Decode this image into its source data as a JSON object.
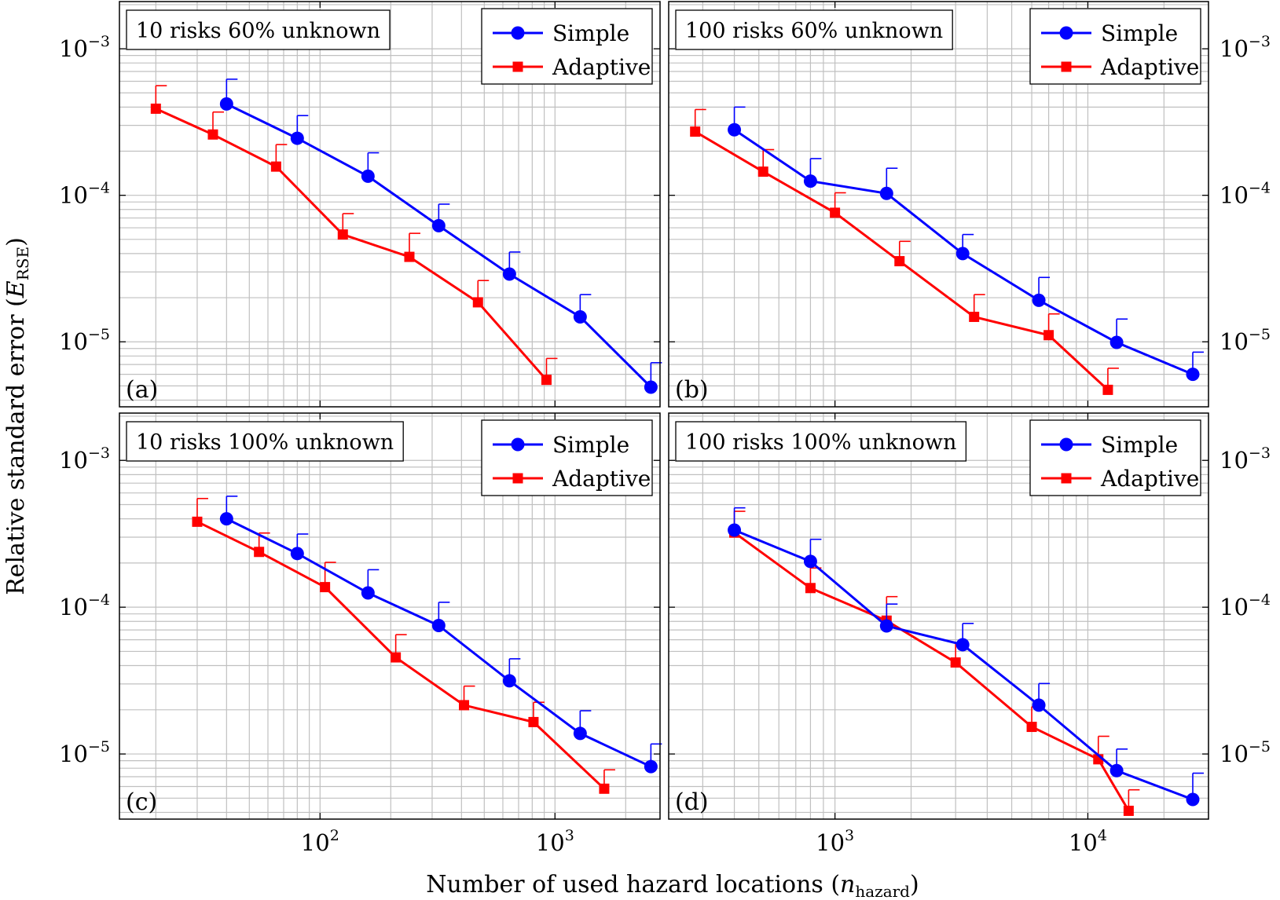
{
  "figure": {
    "ylabel_main": "Relative standard error (",
    "ylabel_var": "E",
    "ylabel_sub": "RSE",
    "ylabel_close": ")",
    "xlabel_main": "Number of used hazard locations (",
    "xlabel_var": "n",
    "xlabel_sub": "hazard",
    "xlabel_close": ")"
  },
  "colors": {
    "simple": "#0000ff",
    "adaptive": "#ff0000",
    "grid": "#c0c0c0"
  },
  "chart_data": [
    {
      "type": "line",
      "panel": "a",
      "panel_label": "(a)",
      "title": "10 risks 60% unknown",
      "xscale": "log",
      "yscale": "log",
      "xlim": [
        14,
        2800
      ],
      "ylim": [
        3.6e-06,
        0.0021
      ],
      "y_ticks": [
        "10^-3",
        "10^-4",
        "10^-5"
      ],
      "x_ticks": [
        "10^2",
        "10^3"
      ],
      "grid": true,
      "legend": [
        "Simple",
        "Adaptive"
      ],
      "legend_position": "top-right",
      "series": [
        {
          "name": "Simple",
          "marker": "circle",
          "x": [
            40,
            80,
            160,
            320,
            640,
            1280,
            2560
          ],
          "y": [
            0.00042,
            0.000245,
            0.000135,
            6.2e-05,
            2.9e-05,
            1.48e-05,
            4.9e-06
          ],
          "err_upper": [
            0.00062,
            0.00035,
            0.000195,
            8.7e-05,
            4.1e-05,
            2.1e-05,
            7.2e-06
          ]
        },
        {
          "name": "Adaptive",
          "marker": "square",
          "x": [
            20,
            35,
            65,
            125,
            240,
            470,
            920
          ],
          "y": [
            0.00039,
            0.00026,
            0.000157,
            5.4e-05,
            3.8e-05,
            1.86e-05,
            5.5e-06
          ],
          "err_upper": [
            0.00056,
            0.00037,
            0.000222,
            7.5e-05,
            5.5e-05,
            2.62e-05,
            7.7e-06
          ]
        }
      ]
    },
    {
      "type": "line",
      "panel": "b",
      "panel_label": "(b)",
      "title": "100 risks 60% unknown",
      "xscale": "log",
      "yscale": "log",
      "xlim": [
        220,
        30000
      ],
      "ylim": [
        3.6e-06,
        0.0021
      ],
      "y_ticks": [
        "10^-3",
        "10^-4",
        "10^-5"
      ],
      "x_ticks": [
        "10^3",
        "10^4"
      ],
      "grid": true,
      "legend": [
        "Simple",
        "Adaptive"
      ],
      "legend_position": "top-right",
      "series": [
        {
          "name": "Simple",
          "marker": "circle",
          "x": [
            400,
            800,
            1600,
            3200,
            6400,
            13000,
            26000
          ],
          "y": [
            0.00028,
            0.000125,
            0.000103,
            4e-05,
            1.92e-05,
            9.9e-06,
            6e-06
          ],
          "err_upper": [
            0.0004,
            0.000178,
            0.000153,
            5.4e-05,
            2.75e-05,
            1.43e-05,
            8.5e-06
          ]
        },
        {
          "name": "Adaptive",
          "marker": "square",
          "x": [
            280,
            520,
            1000,
            1800,
            3550,
            7000,
            12000
          ],
          "y": [
            0.000272,
            0.000145,
            7.6e-05,
            3.55e-05,
            1.48e-05,
            1.11e-05,
            4.7e-06
          ],
          "err_upper": [
            0.000385,
            0.000205,
            0.000104,
            4.85e-05,
            2.1e-05,
            1.55e-05,
            6.6e-06
          ]
        }
      ]
    },
    {
      "type": "line",
      "panel": "c",
      "panel_label": "(c)",
      "title": "10 risks 100% unknown",
      "xscale": "log",
      "yscale": "log",
      "xlim": [
        14,
        2800
      ],
      "ylim": [
        3.6e-06,
        0.0021
      ],
      "y_ticks": [
        "10^-3",
        "10^-4",
        "10^-5"
      ],
      "x_ticks": [
        "10^2",
        "10^3"
      ],
      "grid": true,
      "legend": [
        "Simple",
        "Adaptive"
      ],
      "legend_position": "top-right",
      "series": [
        {
          "name": "Simple",
          "marker": "circle",
          "x": [
            40,
            80,
            160,
            320,
            640,
            1280,
            2560
          ],
          "y": [
            0.0004,
            0.000232,
            0.000125,
            7.5e-05,
            3.15e-05,
            1.38e-05,
            8.2e-06
          ],
          "err_upper": [
            0.00057,
            0.000315,
            0.00018,
            0.000108,
            4.45e-05,
            1.97e-05,
            1.17e-05
          ]
        },
        {
          "name": "Adaptive",
          "marker": "square",
          "x": [
            30,
            55,
            105,
            210,
            410,
            810,
            1620
          ],
          "y": [
            0.000382,
            0.000238,
            0.000137,
            4.55e-05,
            2.15e-05,
            1.65e-05,
            5.8e-06
          ],
          "err_upper": [
            0.00055,
            0.00032,
            0.000202,
            6.5e-05,
            2.9e-05,
            2.25e-05,
            7.8e-06
          ]
        }
      ]
    },
    {
      "type": "line",
      "panel": "d",
      "panel_label": "(d)",
      "title": "100 risks 100% unknown",
      "xscale": "log",
      "yscale": "log",
      "xlim": [
        220,
        30000
      ],
      "ylim": [
        3.6e-06,
        0.0021
      ],
      "y_ticks": [
        "10^-3",
        "10^-4",
        "10^-5"
      ],
      "x_ticks": [
        "10^3",
        "10^4"
      ],
      "grid": true,
      "legend": [
        "Simple",
        "Adaptive"
      ],
      "legend_position": "top-right",
      "series": [
        {
          "name": "Simple",
          "marker": "circle",
          "x": [
            400,
            800,
            1600,
            3200,
            6400,
            13000,
            26000
          ],
          "y": [
            0.000335,
            0.000205,
            7.45e-05,
            5.55e-05,
            2.15e-05,
            7.7e-06,
            4.9e-06
          ],
          "err_upper": [
            0.000475,
            0.00029,
            0.000105,
            7.75e-05,
            3.02e-05,
            1.08e-05,
            7.4e-06
          ]
        },
        {
          "name": "Adaptive",
          "marker": "square",
          "x": [
            400,
            800,
            1600,
            3000,
            6000,
            11000,
            14500
          ],
          "y": [
            0.000322,
            0.000135,
            8.1e-05,
            4.2e-05,
            1.53e-05,
            9.2e-06,
            4.1e-06
          ],
          "err_upper": [
            0.00045,
            0.000185,
            0.000118,
            5.7e-05,
            2.1e-05,
            1.32e-05,
            5.7e-06
          ]
        }
      ]
    }
  ]
}
